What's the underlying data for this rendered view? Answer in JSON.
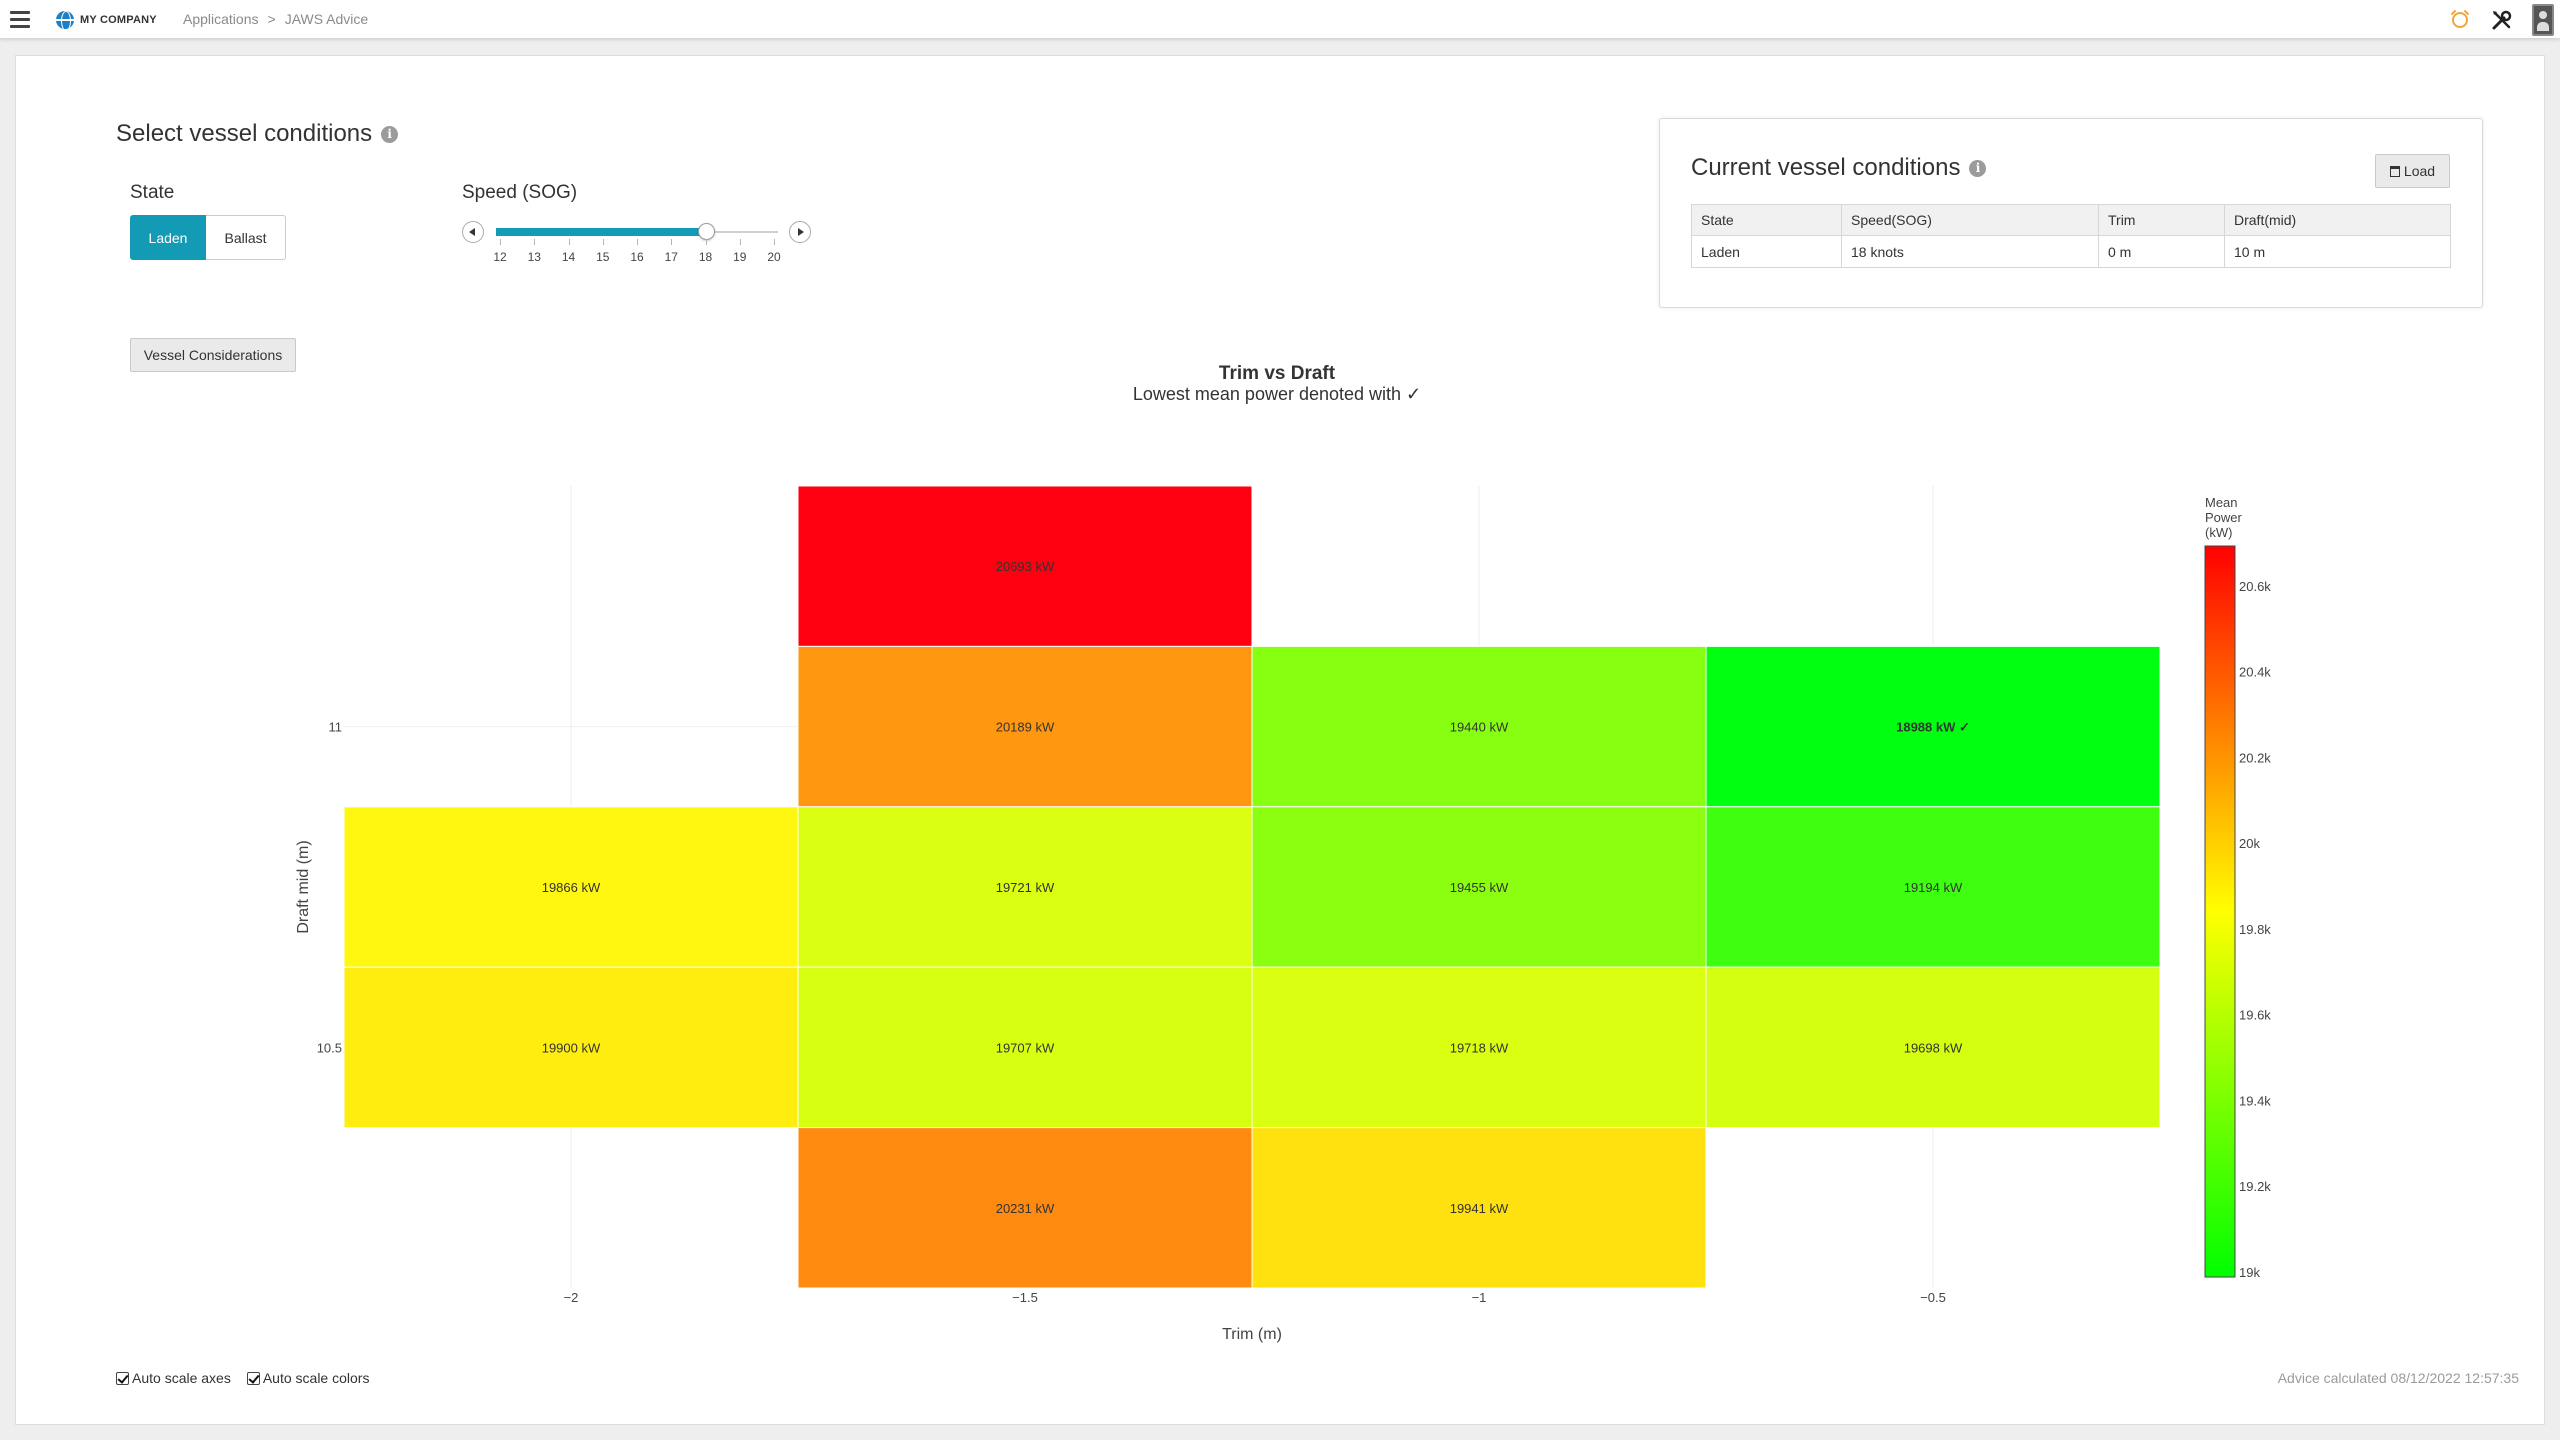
{
  "header": {
    "brand": "MY COMPANY",
    "breadcrumbs": [
      "Applications",
      ">",
      "JAWS Advice"
    ]
  },
  "select": {
    "title": "Select vessel conditions",
    "state_label": "State",
    "state_options": [
      "Laden",
      "Ballast"
    ],
    "state_selected": "Laden",
    "speed_label": "Speed (SOG)",
    "speed_ticks": [
      "12",
      "13",
      "14",
      "15",
      "16",
      "17",
      "18",
      "19",
      "20"
    ],
    "speed_value": 18,
    "speed_min": 12,
    "speed_max": 20,
    "vessel_considerations_button": "Vessel Considerations"
  },
  "current": {
    "title": "Current vessel conditions",
    "load_button": "Load",
    "headers": [
      "State",
      "Speed(SOG)",
      "Trim",
      "Draft(mid)"
    ],
    "row": [
      "Laden",
      "18 knots",
      "0 m",
      "10 m"
    ]
  },
  "chart_data": {
    "type": "heatmap",
    "title": "Trim vs Draft",
    "subtitle": "Lowest mean power denoted with ✓",
    "xlabel": "Trim (m)",
    "ylabel": "Draft mid (m)",
    "x_ticks": [
      "−2",
      "−1.5",
      "−1",
      "−0.5"
    ],
    "y_ticks": [
      "11",
      "10.5"
    ],
    "x": [
      -2,
      -1.5,
      -1,
      -0.5
    ],
    "y": [
      11.25,
      11,
      10.75,
      10.5,
      10.25
    ],
    "unit": "kW",
    "cells": [
      {
        "x": -1.5,
        "y": 11.25,
        "value": 20693,
        "label": "20693 kW"
      },
      {
        "x": -1.5,
        "y": 11,
        "value": 20189,
        "label": "20189 kW"
      },
      {
        "x": -1,
        "y": 11,
        "value": 19440,
        "label": "19440 kW"
      },
      {
        "x": -0.5,
        "y": 11,
        "value": 18988,
        "label": "18988 kW ✓",
        "best": true
      },
      {
        "x": -2,
        "y": 10.75,
        "value": 19866,
        "label": "19866 kW"
      },
      {
        "x": -1.5,
        "y": 10.75,
        "value": 19721,
        "label": "19721 kW"
      },
      {
        "x": -1,
        "y": 10.75,
        "value": 19455,
        "label": "19455 kW"
      },
      {
        "x": -0.5,
        "y": 10.75,
        "value": 19194,
        "label": "19194 kW"
      },
      {
        "x": -2,
        "y": 10.5,
        "value": 19900,
        "label": "19900 kW"
      },
      {
        "x": -1.5,
        "y": 10.5,
        "value": 19707,
        "label": "19707 kW"
      },
      {
        "x": -1,
        "y": 10.5,
        "value": 19718,
        "label": "19718 kW"
      },
      {
        "x": -0.5,
        "y": 10.5,
        "value": 19698,
        "label": "19698 kW"
      },
      {
        "x": -1.5,
        "y": 10.25,
        "value": 20231,
        "label": "20231 kW"
      },
      {
        "x": -1,
        "y": 10.25,
        "value": 19941,
        "label": "19941 kW"
      }
    ],
    "colorbar": {
      "title": [
        "Mean",
        "Power",
        "(kW)"
      ],
      "min": 18988,
      "max": 20693,
      "ticks": [
        {
          "value": 19000,
          "label": "19k"
        },
        {
          "value": 19200,
          "label": "19.2k"
        },
        {
          "value": 19400,
          "label": "19.4k"
        },
        {
          "value": 19600,
          "label": "19.6k"
        },
        {
          "value": 19800,
          "label": "19.8k"
        },
        {
          "value": 20000,
          "label": "20k"
        },
        {
          "value": 20200,
          "label": "20.2k"
        },
        {
          "value": 20400,
          "label": "20.4k"
        },
        {
          "value": 20600,
          "label": "20.6k"
        }
      ],
      "colors": [
        "#00ff00",
        "#ffff00",
        "#ff0000"
      ]
    }
  },
  "footer": {
    "auto_scale_axes": "Auto scale axes",
    "auto_scale_colors": "Auto scale colors",
    "advice_calculated": "Advice calculated 08/12/2022 12:57:35"
  }
}
